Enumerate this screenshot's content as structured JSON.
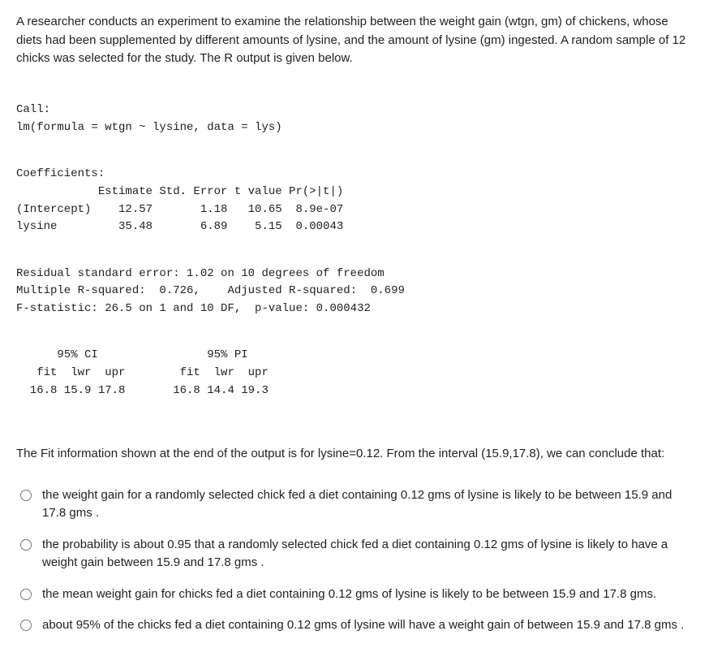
{
  "intro": "A researcher conducts an experiment to examine the relationship between the weight gain (wtgn, gm) of chickens, whose diets had been supplemented by different amounts of lysine, and the amount of lysine (gm) ingested. A random sample of 12 chicks was  selected for the study. The R output is given below.",
  "r_output": {
    "call_lines": "Call:\nlm(formula = wtgn ~ lysine, data = lys)",
    "coef_header": "Coefficients:",
    "coef_cols": "            Estimate Std. Error t value Pr(>|t|)",
    "coef_row1": "(Intercept)    12.57       1.18   10.65  8.9e-07",
    "coef_row2": "lysine         35.48       6.89    5.15  0.00043",
    "resid_line": "Residual standard error: 1.02 on 10 degrees of freedom",
    "rsq_line": "Multiple R-squared:  0.726,    Adjusted R-squared:  0.699",
    "fstat_line": "F-statistic: 26.5 on 1 and 10 DF,  p-value: 0.000432",
    "intervals_h": "      95% CI                95% PI",
    "intervals_c": "   fit  lwr  upr        fit  lwr  upr",
    "intervals_v": "  16.8 15.9 17.8       16.8 14.4 19.3"
  },
  "followup": "The Fit information shown at the end of the output is for lysine=0.12. From the interval (15.9,17.8), we can conclude that:",
  "options": {
    "a": "the weight gain for a randomly selected chick fed a diet containing 0.12 gms of lysine is likely to be between 15.9 and 17.8 gms .",
    "b": "the probability is about 0.95 that a randomly selected chick fed a diet containing 0.12 gms of lysine is likely to have a weight gain between 15.9 and 17.8 gms .",
    "c": "the mean weight gain for chicks fed a diet containing 0.12 gms of lysine is likely to be between 15.9 and 17.8 gms.",
    "d": "about 95% of the chicks fed a diet containing 0.12 gms of lysine will have a weight gain of between 15.9 and 17.8 gms ."
  }
}
